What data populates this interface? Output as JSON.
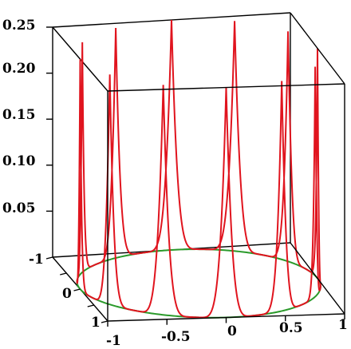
{
  "chart_data": {
    "type": "line",
    "title": "",
    "xlabel": "",
    "ylabel": "",
    "zlabel": "",
    "xlim": [
      -1,
      1
    ],
    "ylim": [
      -1,
      1
    ],
    "zlim": [
      0,
      0.25
    ],
    "grid": false,
    "legend": "none",
    "box": true,
    "z_ticks": [
      "0.25",
      "0.20",
      "0.15",
      "0.10",
      "0.05"
    ],
    "x_ticks": [
      "-1",
      "-0.5",
      "0",
      "0.5",
      "1"
    ],
    "y_ticks": [
      "-1",
      "0",
      "1"
    ],
    "colors": {
      "curve": "#e0141e",
      "base_circle": "#2a9a2a",
      "box": "#000000"
    },
    "series": [
      {
        "description_free": true,
        "curve": "spike",
        "type": "parametric-3d",
        "points_sampled_on": "unit circle x=cos(t), y=sin(t)",
        "cusp_peaks_z": 0.25,
        "cusp_count": 12
      },
      {
        "curve": "base",
        "type": "parametric-3d",
        "z": 0
      }
    ]
  }
}
